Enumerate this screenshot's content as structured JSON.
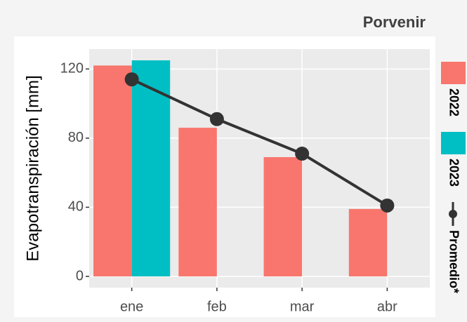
{
  "chart_data": {
    "type": "bar",
    "title": "Porvenir",
    "y_label": "Evapotranspiración [mm]",
    "categories": [
      "ene",
      "feb",
      "mar",
      "abr"
    ],
    "series": [
      {
        "name": "2022",
        "color": "#f8766d",
        "values": [
          122,
          86,
          69,
          39
        ]
      },
      {
        "name": "2023",
        "color": "#00bfc4",
        "values": [
          125,
          null,
          null,
          null
        ]
      },
      {
        "name": "Promedio*",
        "type": "line",
        "color": "#333333",
        "values": [
          114,
          91,
          71,
          41
        ]
      }
    ],
    "ylim": [
      -6.5,
      131.5
    ],
    "yticks": [
      0,
      40,
      80,
      120
    ],
    "grid": true,
    "legend": "right"
  }
}
